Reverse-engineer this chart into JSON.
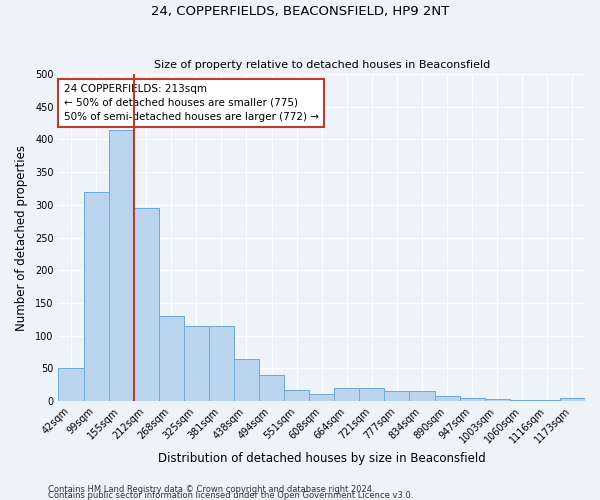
{
  "title1": "24, COPPERFIELDS, BEACONSFIELD, HP9 2NT",
  "title2": "Size of property relative to detached houses in Beaconsfield",
  "xlabel": "Distribution of detached houses by size in Beaconsfield",
  "ylabel": "Number of detached properties",
  "footnote1": "Contains HM Land Registry data © Crown copyright and database right 2024.",
  "footnote2": "Contains public sector information licensed under the Open Government Licence v3.0.",
  "categories": [
    "42sqm",
    "99sqm",
    "155sqm",
    "212sqm",
    "268sqm",
    "325sqm",
    "381sqm",
    "438sqm",
    "494sqm",
    "551sqm",
    "608sqm",
    "664sqm",
    "721sqm",
    "777sqm",
    "834sqm",
    "890sqm",
    "947sqm",
    "1003sqm",
    "1060sqm",
    "1116sqm",
    "1173sqm"
  ],
  "values": [
    50,
    320,
    415,
    295,
    130,
    115,
    115,
    65,
    40,
    17,
    10,
    20,
    20,
    15,
    15,
    8,
    5,
    3,
    2,
    1,
    5
  ],
  "bar_color": "#bad4ed",
  "bar_edge_color": "#6aaad4",
  "vline_x_index": 3,
  "vline_color": "#c0392b",
  "annotation_title": "24 COPPERFIELDS: 213sqm",
  "annotation_line1": "← 50% of detached houses are smaller (775)",
  "annotation_line2": "50% of semi-detached houses are larger (772) →",
  "annotation_box_color": "#c0392b",
  "ylim": [
    0,
    500
  ],
  "yticks": [
    0,
    50,
    100,
    150,
    200,
    250,
    300,
    350,
    400,
    450,
    500
  ],
  "background_color": "#eef2f9",
  "plot_bg_color": "#eef2f9",
  "grid_color": "#ffffff",
  "title1_fontsize": 9.5,
  "title2_fontsize": 8.0,
  "xlabel_fontsize": 8.5,
  "ylabel_fontsize": 8.5,
  "tick_fontsize": 7.0,
  "annot_fontsize": 7.5,
  "footnote_fontsize": 6.0
}
